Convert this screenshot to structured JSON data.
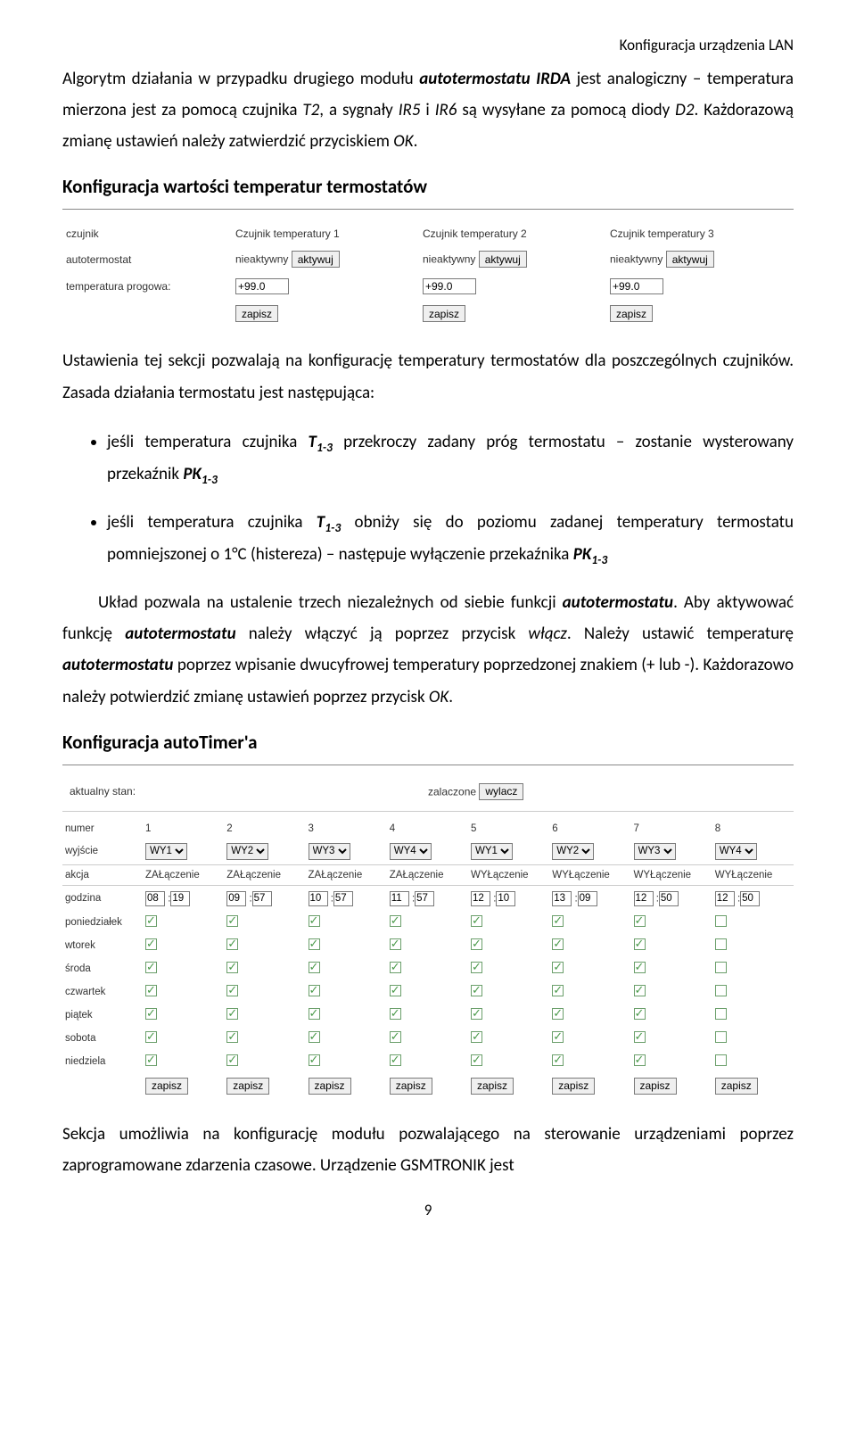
{
  "header": {
    "right": "Konfiguracja urządzenia LAN"
  },
  "para1": {
    "seg1": "Algorytm działania w przypadku drugiego modułu ",
    "bi1": "autotermostatu IRDA",
    "seg2": " jest analogiczny – temperatura mierzona jest za pomocą czujnika ",
    "it1": "T2",
    "seg3": ", a sygnały ",
    "it2": "IR5",
    "seg4": " i ",
    "it3": "IR6",
    "seg5": " są wysyłane za pomocą diody ",
    "it4": "D2",
    "seg6": ". Każdorazową zmianę ustawień należy zatwierdzić przyciskiem ",
    "it5": "OK",
    "seg7": "."
  },
  "heading1": "Konfiguracja wartości temperatur termostatów",
  "ui1": {
    "labels": {
      "row1": "czujnik",
      "row2": "autotermostat",
      "row3": "temperatura progowa:"
    },
    "cols": [
      {
        "title": "Czujnik temperatury 1",
        "state": "nieaktywny",
        "btn": "aktywuj",
        "value": "+99.0",
        "save": "zapisz"
      },
      {
        "title": "Czujnik temperatury 2",
        "state": "nieaktywny",
        "btn": "aktywuj",
        "value": "+99.0",
        "save": "zapisz"
      },
      {
        "title": "Czujnik temperatury 3",
        "state": "nieaktywny",
        "btn": "aktywuj",
        "value": "+99.0",
        "save": "zapisz"
      }
    ]
  },
  "para2": "Ustawienia tej sekcji pozwalają na konfigurację temperatury termostatów dla poszczególnych czujników. Zasada działania termostatu jest następująca:",
  "bullets": {
    "b1": {
      "s1": "jeśli temperatura czujnika ",
      "bi1a": "T",
      "bi1b": "1-3",
      "s2": " przekroczy zadany próg termostatu – zostanie wysterowany przekaźnik ",
      "bi2a": "PK",
      "bi2b": "1-3"
    },
    "b2": {
      "s1": "jeśli temperatura czujnika ",
      "bi1a": "T",
      "bi1b": "1-3",
      "s2": " obniży się do poziomu zadanej temperatury termostatu pomniejszonej o 1°C (histereza) – następuje wyłączenie przekaźnika ",
      "bi2a": "PK",
      "bi2b": "1-3"
    }
  },
  "para3": {
    "s1": "Układ pozwala na ustalenie trzech niezależnych od siebie funkcji ",
    "bi1": "autotermostatu",
    "s2": ". Aby aktywować funkcję ",
    "bi2": "autotermostatu",
    "s3": " należy włączyć ją poprzez przycisk ",
    "it1": "włącz",
    "s4": ". Należy ustawić temperaturę ",
    "bi3": "autotermostatu",
    "s5": " poprzez wpisanie dwucyfrowej temperatury poprzedzonej znakiem (+ lub -). Każdorazowo należy potwierdzić zmianę ustawień poprzez przycisk ",
    "it2": "OK",
    "s6": "."
  },
  "heading2": "Konfiguracja autoTimer'a",
  "topstate": {
    "label": "aktualny stan:",
    "value": "zalaczone",
    "btn": "wylacz"
  },
  "ui2": {
    "rowlabels": {
      "numer": "numer",
      "wyjscie": "wyjście",
      "akcja": "akcja",
      "godzina": "godzina",
      "pon": "poniedziałek",
      "wt": "wtorek",
      "sr": "środa",
      "czw": "czwartek",
      "pt": "piątek",
      "sob": "sobota",
      "nd": "niedziela",
      "save": "zapisz"
    },
    "cols": [
      {
        "num": "1",
        "wy": "WY1",
        "akcja": "ZAŁączenie",
        "h": "08",
        "m": "19",
        "days": [
          true,
          true,
          true,
          true,
          true,
          true,
          true
        ]
      },
      {
        "num": "2",
        "wy": "WY2",
        "akcja": "ZAŁączenie",
        "h": "09",
        "m": "57",
        "days": [
          true,
          true,
          true,
          true,
          true,
          true,
          true
        ]
      },
      {
        "num": "3",
        "wy": "WY3",
        "akcja": "ZAŁączenie",
        "h": "10",
        "m": "57",
        "days": [
          true,
          true,
          true,
          true,
          true,
          true,
          true
        ]
      },
      {
        "num": "4",
        "wy": "WY4",
        "akcja": "ZAŁączenie",
        "h": "11",
        "m": "57",
        "days": [
          true,
          true,
          true,
          true,
          true,
          true,
          true
        ]
      },
      {
        "num": "5",
        "wy": "WY1",
        "akcja": "WYŁączenie",
        "h": "12",
        "m": "10",
        "days": [
          true,
          true,
          true,
          true,
          true,
          true,
          true
        ]
      },
      {
        "num": "6",
        "wy": "WY2",
        "akcja": "WYŁączenie",
        "h": "13",
        "m": "09",
        "days": [
          true,
          true,
          true,
          true,
          true,
          true,
          true
        ]
      },
      {
        "num": "7",
        "wy": "WY3",
        "akcja": "WYŁączenie",
        "h": "12",
        "m": "50",
        "days": [
          true,
          true,
          true,
          true,
          true,
          true,
          true
        ]
      },
      {
        "num": "8",
        "wy": "WY4",
        "akcja": "WYŁączenie",
        "h": "12",
        "m": "50",
        "days": [
          false,
          false,
          false,
          false,
          false,
          false,
          false
        ]
      }
    ],
    "save": "zapisz"
  },
  "para4": "Sekcja umożliwia na konfigurację modułu pozwalającego na sterowanie urządzeniami poprzez zaprogramowane zdarzenia czasowe. Urządzenie GSMTRONIK jest",
  "pagenum": "9"
}
